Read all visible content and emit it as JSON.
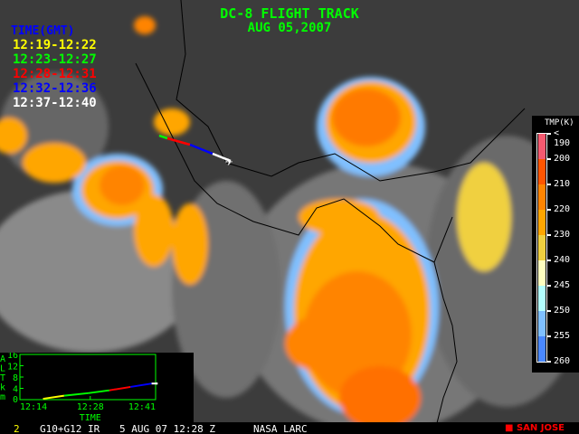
{
  "title": "DC-8 FLIGHT TRACK",
  "date": "AUG 05,2007",
  "legend": {
    "title": "TIME(GMT)",
    "items": [
      {
        "label": "12:19-12:22",
        "color": "#ffff00"
      },
      {
        "label": "12:23-12:27",
        "color": "#00ff00"
      },
      {
        "label": "12:28-12:31",
        "color": "#ff0000"
      },
      {
        "label": "12:32-12:36",
        "color": "#0000ff"
      },
      {
        "label": "12:37-12:40",
        "color": "#ffffff"
      }
    ]
  },
  "colorbar": {
    "title": "TMP(K)",
    "labels": [
      "< 190",
      "200",
      "210",
      "220",
      "230",
      "240",
      "245",
      "250",
      "255",
      "260"
    ],
    "colors": [
      "#f55a70",
      "#ff5500",
      "#ff8400",
      "#ffa600",
      "#f0d040",
      "#ffffc0",
      "#b4ffff",
      "#80c0ff",
      "#4a88ff"
    ]
  },
  "inset": {
    "ylabel_chars": [
      "A",
      "L",
      "T",
      "k",
      "m"
    ],
    "yticks": [
      "16",
      "12",
      "8",
      "4",
      "0"
    ],
    "xticks": [
      "12:14",
      "12:28",
      "12:41"
    ],
    "xlabel": "TIME",
    "altitude_km": [
      [
        12.31,
        0.3
      ],
      [
        12.38,
        1.4
      ],
      [
        12.46,
        2.3
      ],
      [
        12.53,
        3.3
      ],
      [
        12.6,
        4.5
      ],
      [
        12.67,
        5.7
      ],
      [
        12.69,
        5.7
      ]
    ]
  },
  "footer": {
    "frame": "2",
    "sensor": "G10+G12 IR",
    "timestamp": "5 AUG 07 12:28 Z",
    "agency": "NASA LARC",
    "location": "SAN JOSE",
    "location_color": "#ff0000"
  }
}
